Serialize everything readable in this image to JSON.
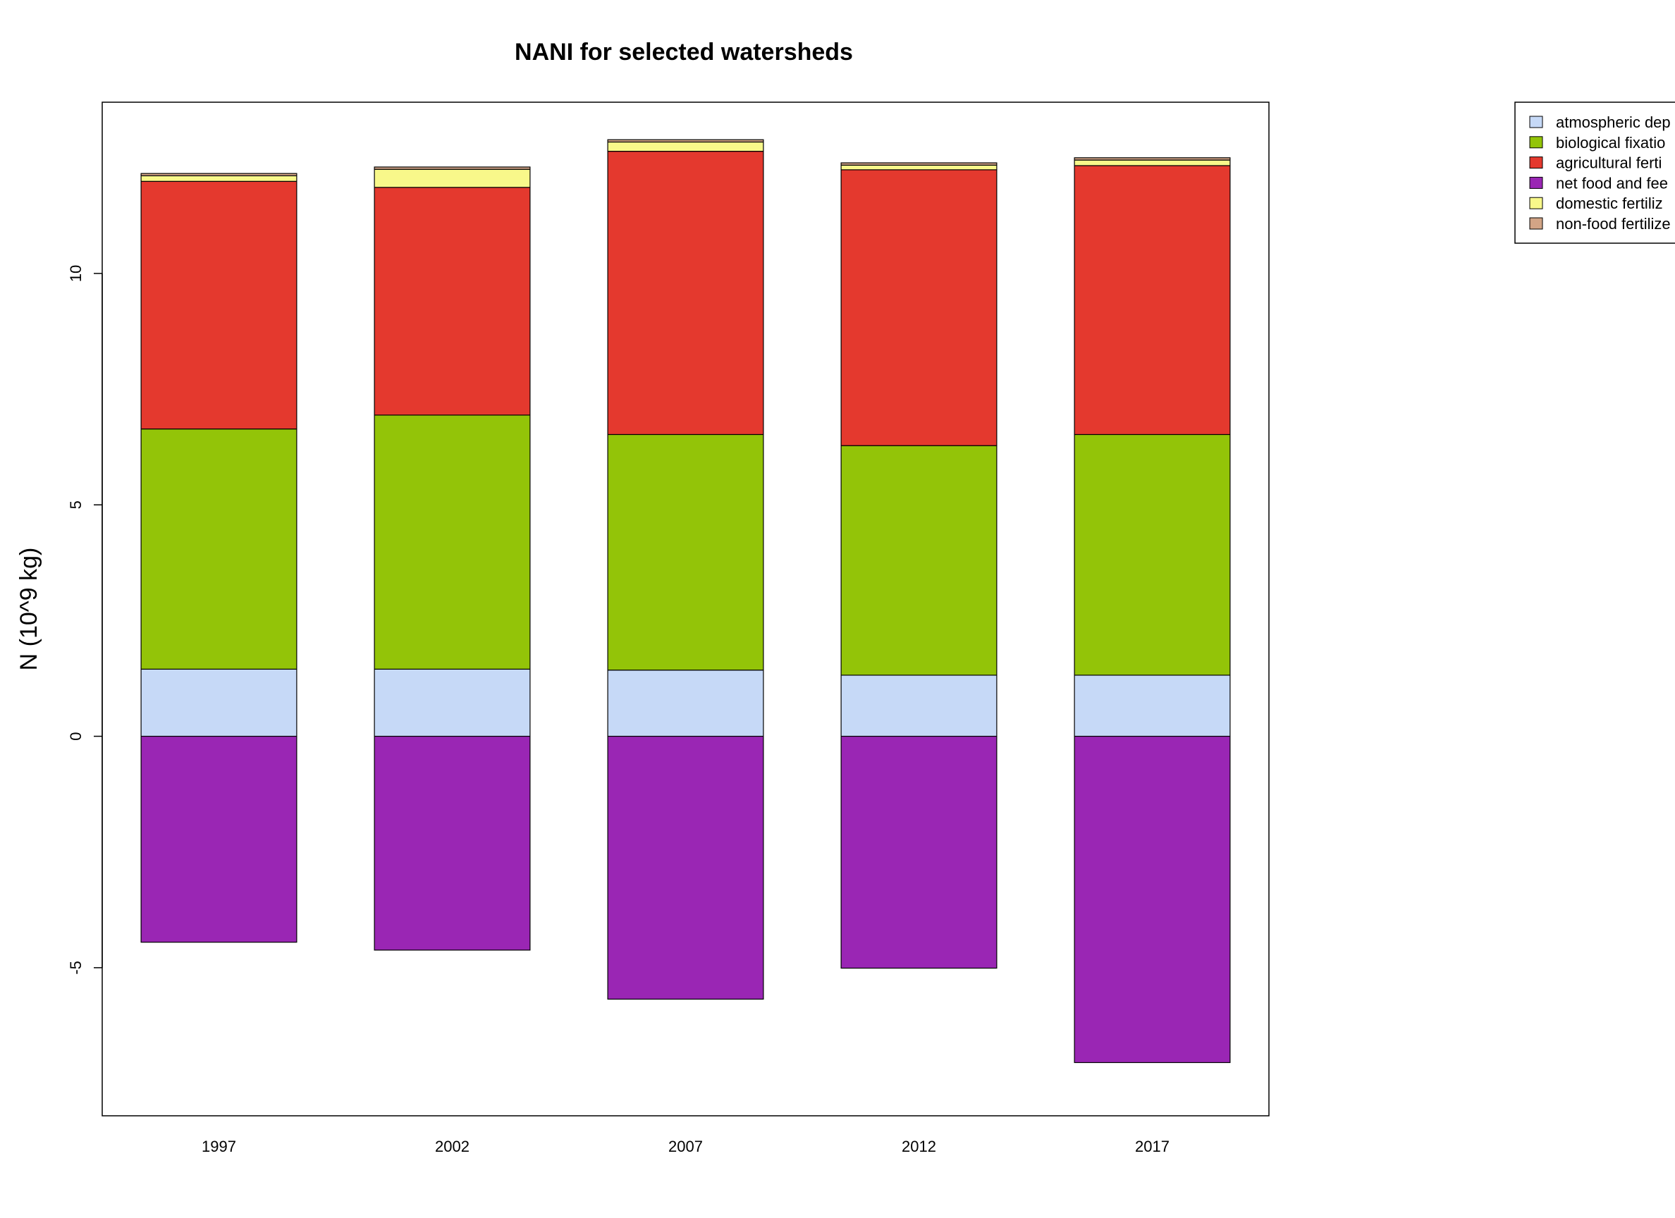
{
  "chart_data": {
    "type": "bar",
    "stacked": true,
    "title": "NANI for selected watersheds",
    "xlabel": "",
    "ylabel": "N (10^9 kg)",
    "categories": [
      "1997",
      "2002",
      "2007",
      "2012",
      "2017"
    ],
    "ylim": [
      -8.2,
      13.7
    ],
    "yticks": [
      -5,
      0,
      5,
      10
    ],
    "grid": false,
    "legend_position": "top-right",
    "series": [
      {
        "name": "atmospheric dep",
        "color": "#c6d9f7",
        "values": [
          1.45,
          1.45,
          1.43,
          1.32,
          1.32
        ]
      },
      {
        "name": "biological fixatio",
        "color": "#93c408",
        "values": [
          5.19,
          5.49,
          5.09,
          4.96,
          5.2
        ]
      },
      {
        "name": "agricultural ferti",
        "color": "#e4392e",
        "values": [
          5.35,
          4.92,
          6.12,
          5.96,
          5.81
        ]
      },
      {
        "name": "net food and fee",
        "color": "#9a26b4",
        "values": [
          -4.45,
          -4.62,
          -5.68,
          -5.01,
          -7.05
        ]
      },
      {
        "name": "domestic fertiliz",
        "color": "#f8f88a",
        "values": [
          0.12,
          0.39,
          0.2,
          0.1,
          0.12
        ]
      },
      {
        "name": "non-food fertilize",
        "color": "#d2a486",
        "values": [
          0.05,
          0.05,
          0.05,
          0.05,
          0.05
        ]
      }
    ]
  }
}
